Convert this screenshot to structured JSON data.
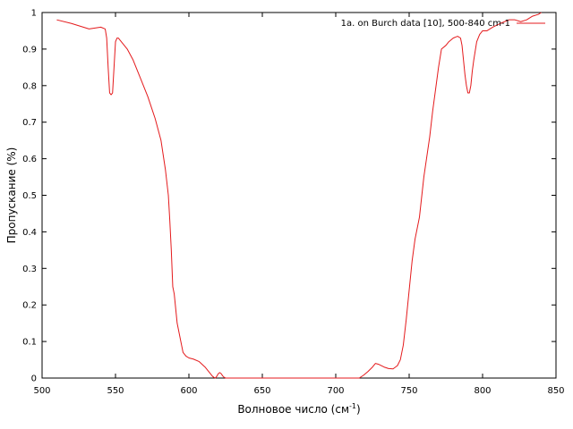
{
  "chart_data": {
    "type": "line",
    "xlabel": "Волновое число (см",
    "xlabel_sup": "-1",
    "xlabel_end": ")",
    "ylabel": "Пропускание (%)",
    "xlim": [
      500,
      850
    ],
    "ylim": [
      0,
      1
    ],
    "xticks": [
      "500",
      "550",
      "600",
      "650",
      "700",
      "750",
      "800",
      "850"
    ],
    "yticks": [
      "0",
      "0.1",
      "0.2",
      "0.3",
      "0.4",
      "0.5",
      "0.6",
      "0.7",
      "0.8",
      "0.9",
      "1"
    ],
    "grid": false,
    "legend_position": "top-right",
    "line_color": "#e41a1c",
    "series": [
      {
        "name": "1a. on Burch data [10], 500-840 cm-1",
        "x": [
          510,
          520,
          532,
          540,
          543,
          544,
          545,
          546,
          547,
          548,
          549,
          550,
          551,
          552,
          555,
          558,
          562,
          567,
          572,
          577,
          581,
          584,
          586,
          587,
          588,
          589,
          590,
          592,
          595,
          596,
          598,
          600,
          603,
          607,
          611,
          614,
          616,
          617,
          618,
          619,
          620,
          621,
          622,
          623,
          624,
          625,
          626,
          630,
          640,
          650,
          660,
          670,
          680,
          690,
          700,
          710,
          716,
          719,
          722,
          725,
          727,
          729,
          731,
          733,
          736,
          739,
          742,
          744,
          746,
          748,
          750,
          752,
          754,
          757,
          760,
          764,
          766,
          768,
          770,
          772,
          775,
          777,
          780,
          783,
          785,
          786,
          787,
          788,
          789,
          790,
          791,
          792,
          793,
          794,
          796,
          798,
          800,
          803,
          807,
          812,
          818,
          822,
          826,
          830,
          834,
          838,
          840
        ],
        "y": [
          0.98,
          0.97,
          0.955,
          0.96,
          0.955,
          0.93,
          0.85,
          0.78,
          0.775,
          0.78,
          0.85,
          0.92,
          0.93,
          0.93,
          0.915,
          0.9,
          0.87,
          0.82,
          0.77,
          0.71,
          0.65,
          0.57,
          0.5,
          0.43,
          0.35,
          0.25,
          0.23,
          0.15,
          0.09,
          0.07,
          0.06,
          0.055,
          0.052,
          0.045,
          0.03,
          0.015,
          0.005,
          0.002,
          0.0,
          0.005,
          0.012,
          0.015,
          0.012,
          0.006,
          0.002,
          0.0,
          0.0,
          0.0,
          0.0,
          0.0,
          0.0,
          0.0,
          0.0,
          0.0,
          0.0,
          0.0,
          0.0,
          0.008,
          0.018,
          0.03,
          0.04,
          0.038,
          0.034,
          0.03,
          0.026,
          0.025,
          0.034,
          0.05,
          0.09,
          0.16,
          0.24,
          0.32,
          0.38,
          0.44,
          0.55,
          0.66,
          0.73,
          0.79,
          0.85,
          0.9,
          0.91,
          0.92,
          0.93,
          0.935,
          0.93,
          0.91,
          0.87,
          0.83,
          0.8,
          0.78,
          0.78,
          0.8,
          0.84,
          0.87,
          0.92,
          0.94,
          0.95,
          0.95,
          0.96,
          0.97,
          0.98,
          0.98,
          0.975,
          0.98,
          0.99,
          0.995,
          1.0
        ]
      }
    ]
  }
}
